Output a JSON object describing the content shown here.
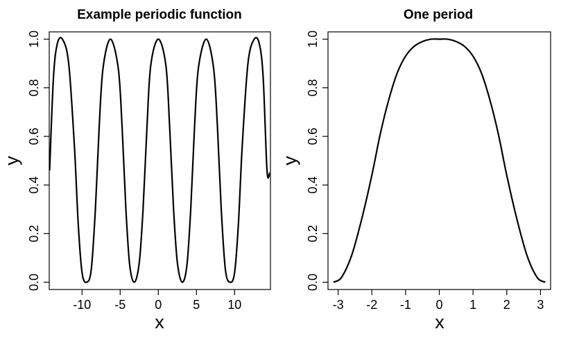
{
  "chart_data": [
    {
      "type": "line",
      "title": "Example periodic function",
      "xlabel": "x",
      "ylabel": "y",
      "xlim": [
        -14.3,
        14.7
      ],
      "ylim": [
        -0.03,
        1.03
      ],
      "xticks": [
        -10,
        -5,
        0,
        5,
        10
      ],
      "xtick_labels": [
        "-10",
        "-5",
        "0",
        "5",
        "10"
      ],
      "yticks": [
        0,
        0.2,
        0.4,
        0.6,
        0.8,
        1
      ],
      "ytick_labels": [
        "0.0",
        "0.2",
        "0.4",
        "0.6",
        "0.8",
        "1.0"
      ],
      "grid": false,
      "series": [
        {
          "x": [
            -14.25,
            -13.75,
            -13.25,
            -12.57,
            -11.75,
            -11.0,
            -10.5,
            -10.0,
            -9.42,
            -8.8,
            -8.25,
            -7.75,
            -7.25,
            -6.28,
            -5.25,
            -4.75,
            -4.25,
            -3.75,
            -3.14,
            -2.5,
            -2.0,
            -1.5,
            -1.0,
            0.0,
            1.0,
            1.5,
            2.0,
            2.5,
            3.14,
            3.75,
            4.25,
            4.75,
            5.25,
            6.28,
            7.25,
            7.75,
            8.25,
            8.8,
            9.42,
            10.0,
            10.5,
            11.0,
            11.75,
            12.57,
            13.25,
            13.75,
            14.25,
            14.6
          ],
          "y": [
            0.46,
            0.84,
            0.98,
            1.0,
            0.9,
            0.56,
            0.24,
            0.04,
            0.0,
            0.05,
            0.3,
            0.64,
            0.88,
            1.0,
            0.88,
            0.64,
            0.3,
            0.07,
            0.0,
            0.08,
            0.3,
            0.63,
            0.89,
            1.0,
            0.89,
            0.63,
            0.3,
            0.08,
            0.0,
            0.07,
            0.3,
            0.64,
            0.88,
            1.0,
            0.88,
            0.64,
            0.3,
            0.05,
            0.0,
            0.04,
            0.24,
            0.56,
            0.9,
            1.0,
            0.98,
            0.84,
            0.46,
            0.45
          ]
        }
      ]
    },
    {
      "type": "line",
      "title": "One period",
      "xlabel": "x",
      "ylabel": "y",
      "xlim": [
        -3.3,
        3.3
      ],
      "ylim": [
        -0.03,
        1.03
      ],
      "xticks": [
        -3,
        -2,
        -1,
        0,
        1,
        2,
        3
      ],
      "xtick_labels": [
        "-3",
        "-2",
        "-1",
        "0",
        "1",
        "2",
        "3"
      ],
      "yticks": [
        0,
        0.2,
        0.4,
        0.6,
        0.8,
        1
      ],
      "ytick_labels": [
        "0.0",
        "0.2",
        "0.4",
        "0.6",
        "0.8",
        "1.0"
      ],
      "grid": false,
      "series": [
        {
          "x": [
            -3.14,
            -2.9,
            -2.6,
            -2.3,
            -2.0,
            -1.75,
            -1.5,
            -1.25,
            -1.0,
            -0.75,
            -0.5,
            -0.25,
            0.0,
            0.25,
            0.5,
            0.75,
            1.0,
            1.25,
            1.5,
            1.75,
            2.0,
            2.3,
            2.6,
            2.9,
            3.14
          ],
          "y": [
            0.0,
            0.02,
            0.11,
            0.26,
            0.44,
            0.61,
            0.75,
            0.86,
            0.93,
            0.97,
            0.99,
            1.0,
            1.0,
            1.0,
            0.99,
            0.97,
            0.93,
            0.86,
            0.75,
            0.61,
            0.44,
            0.26,
            0.11,
            0.02,
            0.0
          ]
        }
      ]
    }
  ]
}
